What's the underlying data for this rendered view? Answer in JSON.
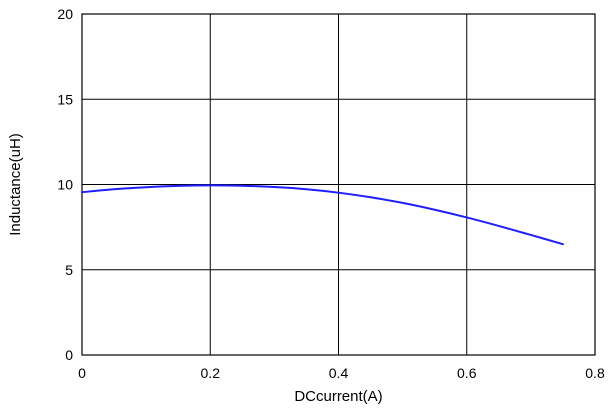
{
  "chart_data": {
    "type": "line",
    "title": "",
    "xlabel": "DCcurrent(A)",
    "ylabel": "Inductance(uH)",
    "xlim": [
      0,
      0.8
    ],
    "ylim": [
      0,
      20
    ],
    "x_ticks": [
      0,
      0.2,
      0.4,
      0.6,
      0.8
    ],
    "x_tick_labels": [
      "0",
      "0.2",
      "0.4",
      "0.6",
      "0.8"
    ],
    "y_ticks": [
      0,
      5,
      10,
      15,
      20
    ],
    "y_tick_labels": [
      "0",
      "5",
      "10",
      "15",
      "20"
    ],
    "grid": true,
    "series": [
      {
        "color": "#1f1fff",
        "x": [
          0,
          0.05,
          0.1,
          0.15,
          0.2,
          0.25,
          0.3,
          0.35,
          0.4,
          0.45,
          0.5,
          0.55,
          0.6,
          0.65,
          0.7,
          0.75
        ],
        "y": [
          9.55,
          9.72,
          9.84,
          9.92,
          9.95,
          9.93,
          9.85,
          9.72,
          9.52,
          9.25,
          8.92,
          8.52,
          8.07,
          7.57,
          7.04,
          6.5
        ]
      }
    ]
  }
}
